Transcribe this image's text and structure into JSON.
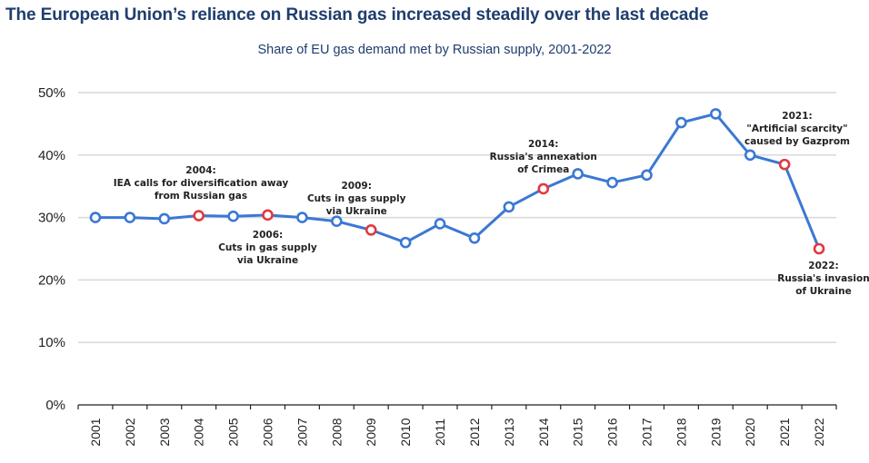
{
  "header": {
    "title": "The European Union’s reliance on Russian gas increased steadily over the last decade"
  },
  "chart_data": {
    "type": "line",
    "title": "Share of EU gas demand met by Russian supply, 2001-2022",
    "xlabel": "",
    "ylabel": "",
    "ylim": [
      0,
      50
    ],
    "yticks": [
      0,
      10,
      20,
      30,
      40,
      50
    ],
    "ytick_labels": [
      "0%",
      "10%",
      "20%",
      "30%",
      "40%",
      "50%"
    ],
    "grid": true,
    "legend": "none",
    "categories": [
      "2001",
      "2002",
      "2003",
      "2004",
      "2005",
      "2006",
      "2007",
      "2008",
      "2009",
      "2010",
      "2011",
      "2012",
      "2013",
      "2014",
      "2015",
      "2016",
      "2017",
      "2018",
      "2019",
      "2020",
      "2021",
      "2022"
    ],
    "series": [
      {
        "name": "Share of EU gas demand met by Russian supply (%)",
        "values": [
          30.0,
          30.0,
          29.8,
          30.3,
          30.2,
          30.4,
          30.0,
          29.4,
          28.0,
          26.0,
          29.0,
          26.7,
          31.7,
          34.6,
          37.0,
          35.6,
          36.8,
          45.2,
          46.6,
          40.0,
          38.5,
          25.0
        ],
        "color": "#3a78d4"
      }
    ],
    "highlighted_years": [
      "2004",
      "2006",
      "2009",
      "2014",
      "2021",
      "2022"
    ],
    "highlight_color": "#e0393e",
    "annotations": [
      {
        "year": "2004",
        "lines": [
          "2004:",
          "IEA calls for diversification away",
          "from Russian gas"
        ],
        "position": "above"
      },
      {
        "year": "2006",
        "lines": [
          "2006:",
          "Cuts in gas supply",
          "via Ukraine"
        ],
        "position": "below"
      },
      {
        "year": "2009",
        "lines": [
          "2009:",
          "Cuts in gas supply",
          "via Ukraine"
        ],
        "position": "above"
      },
      {
        "year": "2014",
        "lines": [
          "2014:",
          "Russia's annexation",
          "of Crimea"
        ],
        "position": "above"
      },
      {
        "year": "2021",
        "lines": [
          "2021:",
          "\"Artificial scarcity\"",
          "caused by Gazprom"
        ],
        "position": "above"
      },
      {
        "year": "2022",
        "lines": [
          "2022:",
          "Russia's invasion",
          "of Ukraine"
        ],
        "position": "below"
      }
    ]
  }
}
